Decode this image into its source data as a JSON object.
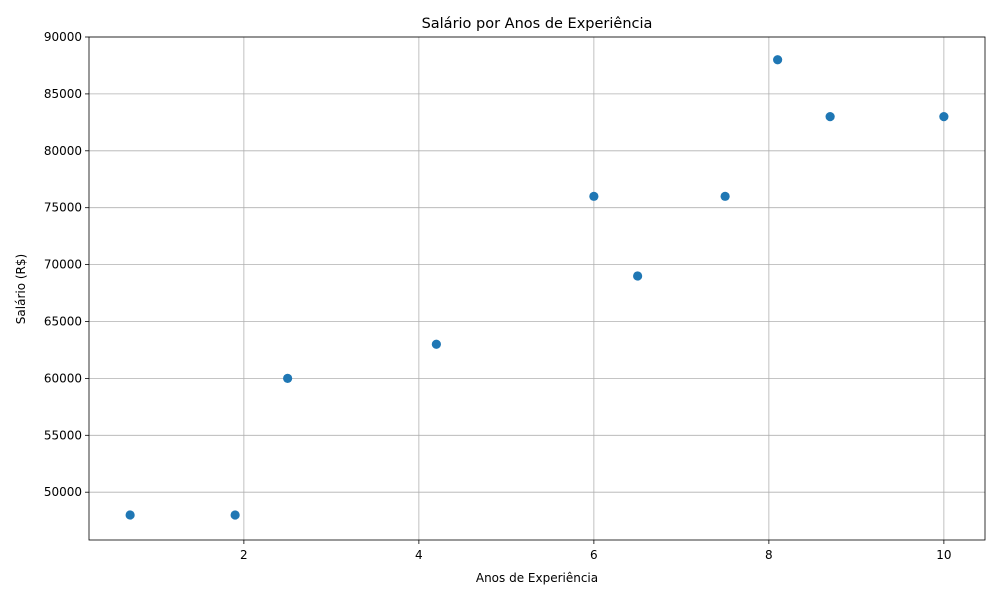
{
  "chart_data": {
    "type": "scatter",
    "title": "Salário por Anos de Experiência",
    "xlabel": "Anos de Experiência",
    "ylabel": "Salário (R$)",
    "xlim": [
      0.23,
      10.47
    ],
    "ylim": [
      45800,
      90000
    ],
    "x_ticks": [
      2,
      4,
      6,
      8,
      10
    ],
    "y_ticks": [
      50000,
      55000,
      60000,
      65000,
      70000,
      75000,
      80000,
      85000,
      90000
    ],
    "grid": true,
    "marker_color": "#1f77b4",
    "points": [
      {
        "x": 0.7,
        "y": 48000
      },
      {
        "x": 1.9,
        "y": 48000
      },
      {
        "x": 2.5,
        "y": 60000
      },
      {
        "x": 4.2,
        "y": 63000
      },
      {
        "x": 6.0,
        "y": 76000
      },
      {
        "x": 6.5,
        "y": 69000
      },
      {
        "x": 7.5,
        "y": 76000
      },
      {
        "x": 8.1,
        "y": 88000
      },
      {
        "x": 8.7,
        "y": 83000
      },
      {
        "x": 10.0,
        "y": 83000
      }
    ]
  }
}
